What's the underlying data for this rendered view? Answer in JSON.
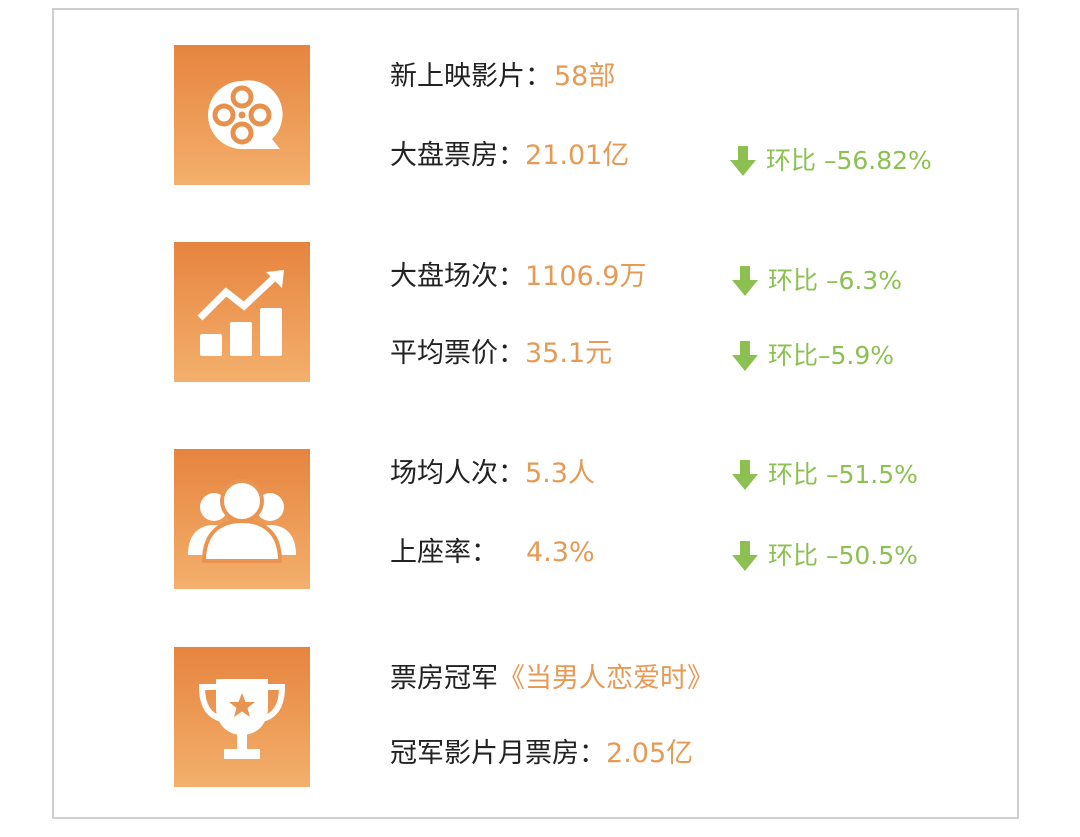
{
  "colors": {
    "accent_orange": "#e59a55",
    "down_green": "#8cc152",
    "icon_bg_top": "#e6843f",
    "icon_bg_bottom": "#f3b06c"
  },
  "sections": [
    {
      "icon": "film-reel-icon",
      "rows": [
        {
          "label": "新上映影片：",
          "value": "58部"
        },
        {
          "label": "大盘票房：",
          "value": "21.01亿",
          "change": "环比 –56.82%"
        }
      ]
    },
    {
      "icon": "growth-chart-icon",
      "rows": [
        {
          "label": "大盘场次：",
          "value": "1106.9万",
          "change": "环比 –6.3%"
        },
        {
          "label": "平均票价：",
          "value": "35.1元",
          "change": "环比–5.9%"
        }
      ]
    },
    {
      "icon": "audience-icon",
      "rows": [
        {
          "label": "场均人次：",
          "value": "5.3人",
          "change": "环比 –51.5%"
        },
        {
          "label": "上座率：",
          "value": "4.3%",
          "change": "环比 –50.5%"
        }
      ]
    },
    {
      "icon": "trophy-icon",
      "rows": [
        {
          "label": "票房冠军",
          "value": "《当男人恋爱时》"
        },
        {
          "label": "冠军影片月票房：",
          "value": "2.05亿"
        }
      ]
    }
  ]
}
